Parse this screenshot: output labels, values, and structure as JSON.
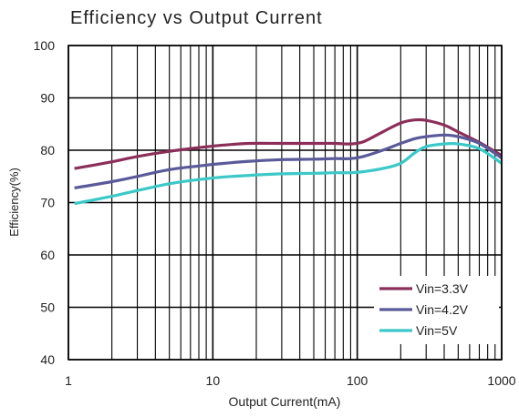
{
  "chart_data": {
    "type": "line",
    "title": "Efficiency vs Output Current",
    "xlabel": "Output Current(mA)",
    "ylabel": "Efficiency(%)",
    "x_scale": "log",
    "xlim": [
      1,
      1000
    ],
    "ylim": [
      40,
      100
    ],
    "x_ticks": [
      1,
      10,
      100,
      1000
    ],
    "x_tick_labels": [
      "1",
      "10",
      "100",
      "1000"
    ],
    "y_ticks": [
      40,
      50,
      60,
      70,
      80,
      90,
      100
    ],
    "y_tick_labels": [
      "40",
      "50",
      "60",
      "70",
      "80",
      "90",
      "100"
    ],
    "grid": true,
    "legend_position": "bottom-right",
    "series": [
      {
        "name": "Vin=3.3V",
        "color": "#8b2f5a",
        "x": [
          1.1,
          2,
          3,
          5,
          8,
          12,
          18,
          30,
          50,
          70,
          90,
          110,
          150,
          200,
          250,
          300,
          400,
          500,
          700,
          1000
        ],
        "y": [
          76.5,
          77.8,
          78.8,
          79.8,
          80.5,
          81.0,
          81.3,
          81.3,
          81.3,
          81.3,
          81.2,
          81.6,
          83.5,
          85.2,
          85.8,
          85.7,
          84.8,
          83.5,
          81.5,
          79.0
        ]
      },
      {
        "name": "Vin=4.2V",
        "color": "#5a5a9a",
        "x": [
          1.1,
          2,
          3,
          5,
          8,
          12,
          18,
          30,
          50,
          70,
          90,
          110,
          150,
          200,
          250,
          300,
          400,
          500,
          700,
          1000
        ],
        "y": [
          72.8,
          74.0,
          75.0,
          76.3,
          77.0,
          77.5,
          77.9,
          78.2,
          78.3,
          78.4,
          78.4,
          78.8,
          80.0,
          81.3,
          82.2,
          82.6,
          82.9,
          82.6,
          81.3,
          78.5
        ]
      },
      {
        "name": "Vin=5V",
        "color": "#3cc8c8",
        "x": [
          1.1,
          2,
          3,
          5,
          8,
          12,
          18,
          30,
          50,
          70,
          90,
          110,
          150,
          200,
          250,
          300,
          400,
          500,
          700,
          1000
        ],
        "y": [
          69.8,
          71.2,
          72.3,
          73.6,
          74.4,
          74.9,
          75.2,
          75.5,
          75.6,
          75.7,
          75.7,
          75.9,
          76.5,
          77.5,
          79.5,
          80.7,
          81.2,
          81.2,
          80.3,
          77.5
        ]
      }
    ]
  }
}
